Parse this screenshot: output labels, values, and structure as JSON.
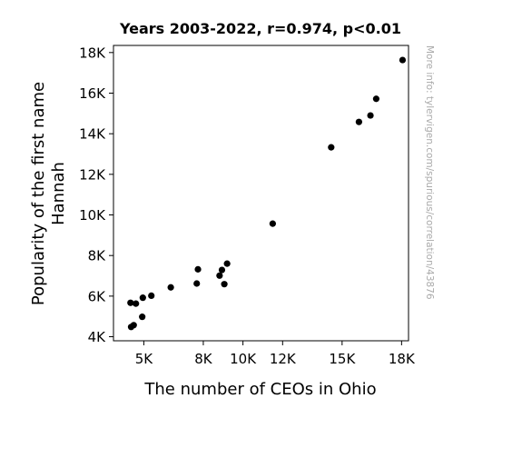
{
  "chart_data": {
    "type": "scatter",
    "title": "Years 2003-2022, r=0.974, p<0.01",
    "xlabel": "The number of CEOs in Ohio",
    "ylabel_lines": [
      "Popularity of the first name",
      "Hannah"
    ],
    "side_note": "More info: tylervigen.com/spurious/correlation/43876",
    "xlim": [
      3470,
      18350
    ],
    "ylim": [
      3800,
      18350
    ],
    "xticks": [
      {
        "value": 5000,
        "label": "5K"
      },
      {
        "value": 8000,
        "label": "8K"
      },
      {
        "value": 10000,
        "label": "10K"
      },
      {
        "value": 12000,
        "label": "12K"
      },
      {
        "value": 15000,
        "label": "15K"
      },
      {
        "value": 18000,
        "label": "18K"
      }
    ],
    "yticks": [
      {
        "value": 4000,
        "label": "4K"
      },
      {
        "value": 6000,
        "label": "6K"
      },
      {
        "value": 8000,
        "label": "8K"
      },
      {
        "value": 10000,
        "label": "10K"
      },
      {
        "value": 12000,
        "label": "12K"
      },
      {
        "value": 14000,
        "label": "14K"
      },
      {
        "value": 16000,
        "label": "16K"
      },
      {
        "value": 18000,
        "label": "18K"
      }
    ],
    "grid": false,
    "legend": "none",
    "point_color": "#000000",
    "points": [
      {
        "x": 4330,
        "y": 5670
      },
      {
        "x": 4600,
        "y": 5630
      },
      {
        "x": 4950,
        "y": 5920
      },
      {
        "x": 5380,
        "y": 6020
      },
      {
        "x": 6360,
        "y": 6430
      },
      {
        "x": 4360,
        "y": 4480
      },
      {
        "x": 4490,
        "y": 4570
      },
      {
        "x": 4920,
        "y": 4980
      },
      {
        "x": 7670,
        "y": 6620
      },
      {
        "x": 7730,
        "y": 7320
      },
      {
        "x": 8820,
        "y": 7010
      },
      {
        "x": 8940,
        "y": 7290
      },
      {
        "x": 9060,
        "y": 6590
      },
      {
        "x": 9200,
        "y": 7600
      },
      {
        "x": 11500,
        "y": 9570
      },
      {
        "x": 14450,
        "y": 13330
      },
      {
        "x": 15850,
        "y": 14580
      },
      {
        "x": 16430,
        "y": 14900
      },
      {
        "x": 16720,
        "y": 15720
      },
      {
        "x": 18050,
        "y": 17630
      }
    ]
  }
}
